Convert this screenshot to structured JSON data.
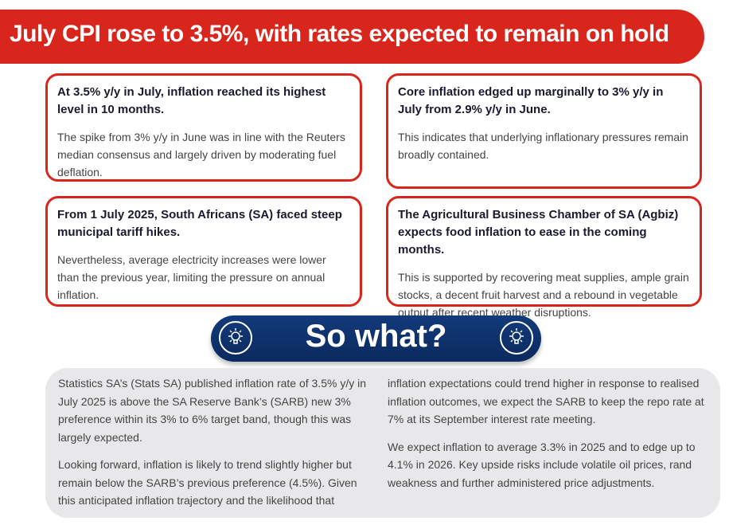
{
  "title": "July CPI rose to 3.5%, with rates expected to remain on hold",
  "cards": [
    {
      "heading": "At 3.5% y/y in July, inflation reached its highest level in 10 months.",
      "body": "The spike from 3% y/y in June was in line with the Reuters median consensus and largely driven by moderating fuel deflation."
    },
    {
      "heading": "Core inflation edged up marginally to 3% y/y in July from 2.9% y/y in June.",
      "body": "This indicates that underlying inflationary pressures remain broadly contained."
    },
    {
      "heading": "From 1 July 2025, South Africans (SA) faced steep municipal tariff hikes.",
      "body": "Nevertheless, average electricity increases were lower than the previous year, limiting the pressure on annual inflation."
    },
    {
      "heading": "The Agricultural Business Chamber of SA (Agbiz) expects food inflation to ease in the coming months.",
      "body": "This is supported by recovering meat supplies, ample grain stocks, a decent fruit harvest and a rebound in vegetable output after recent weather disruptions."
    }
  ],
  "so_what": {
    "label": "So what?",
    "icon": "lightbulb-icon"
  },
  "summary": {
    "left": [
      "Statistics SA’s (Stats SA) published inflation rate of 3.5% y/y in July 2025 is above the SA Reserve Bank’s (SARB) new 3% preference within its 3% to 6% target band, though this was largely expected.",
      "Looking forward, inflation is likely to trend slightly higher but remain below the SARB’s previous preference (4.5%). Given this anticipated inflation trajectory and the likelihood that"
    ],
    "right": [
      "inflation expectations could trend higher in response to realised inflation outcomes, we expect the SARB to keep the repo rate at 7% at its September interest rate meeting.",
      "We expect inflation to average 3.3% in 2025 and to edge up to 4.1% in 2026. Key upside risks include volatile oil prices, rand weakness and further administered price adjustments."
    ]
  },
  "colors": {
    "red": "#d9261c",
    "navy": "#0b2a5e",
    "panel": "#e8e8ea"
  }
}
